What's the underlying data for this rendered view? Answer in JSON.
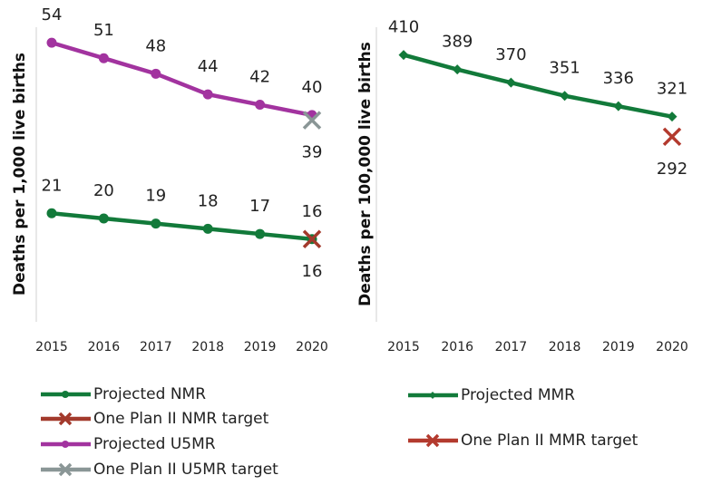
{
  "chart_data": [
    {
      "type": "line",
      "ylabel": "Deaths per 1,000 live births",
      "categories": [
        "2015",
        "2016",
        "2017",
        "2018",
        "2019",
        "2020"
      ],
      "ylim": [
        0,
        57
      ],
      "series": [
        {
          "name": "Projected NMR",
          "color": "#127a3a",
          "marker": "circle",
          "values": [
            21,
            20,
            19,
            18,
            17,
            16
          ]
        },
        {
          "name": "One Plan II NMR target",
          "color": "#a33a2c",
          "marker": "x",
          "values": [
            null,
            null,
            null,
            null,
            null,
            16
          ]
        },
        {
          "name": "Projected U5MR",
          "color": "#a2339f",
          "marker": "circle",
          "values": [
            54,
            51,
            48,
            44,
            42,
            40
          ]
        },
        {
          "name": "One Plan II U5MR target",
          "color": "#8a9696",
          "marker": "x",
          "values": [
            null,
            null,
            null,
            null,
            null,
            39
          ]
        }
      ]
    },
    {
      "type": "line",
      "ylabel": "Deaths per 100,000 live births",
      "categories": [
        "2015",
        "2016",
        "2017",
        "2018",
        "2019",
        "2020"
      ],
      "ylim": [
        25,
        450
      ],
      "series": [
        {
          "name": "Projected MMR",
          "color": "#127a3a",
          "marker": "diamond",
          "values": [
            410,
            389,
            370,
            351,
            336,
            321
          ]
        },
        {
          "name": "One Plan II MMR target",
          "color": "#b33a2e",
          "marker": "x",
          "values": [
            null,
            null,
            null,
            null,
            null,
            292
          ]
        }
      ]
    }
  ]
}
